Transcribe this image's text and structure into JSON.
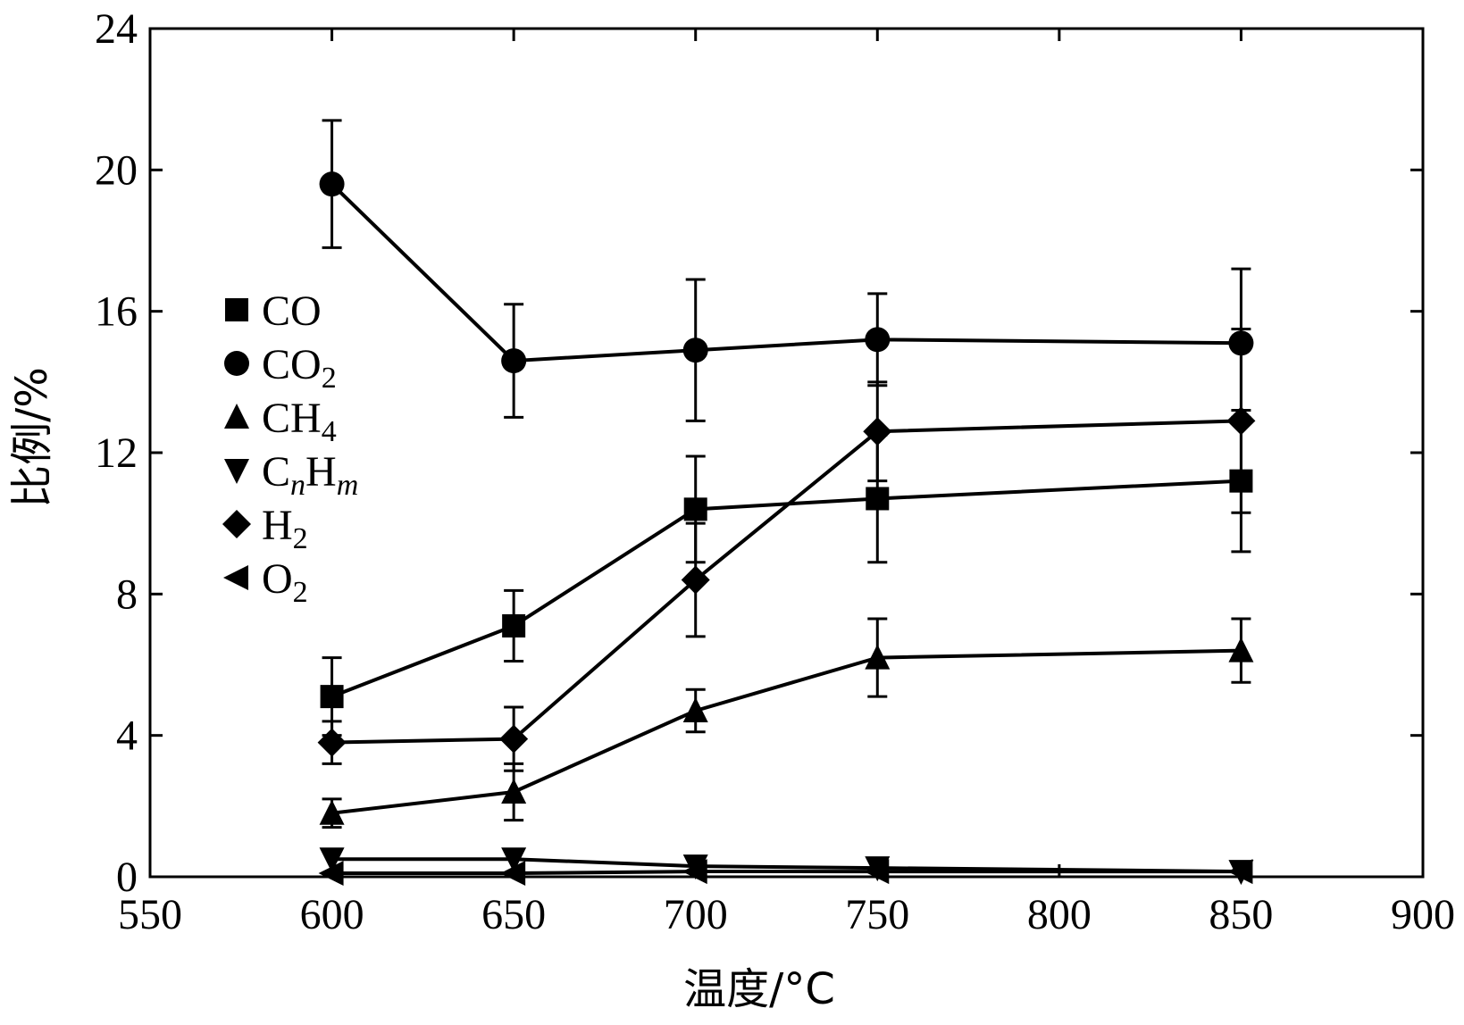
{
  "chart_data": {
    "type": "line",
    "xlabel": "温度/°C",
    "ylabel": "比例/%",
    "xlim": [
      550,
      900
    ],
    "ylim": [
      0,
      24
    ],
    "xticks": [
      550,
      600,
      650,
      700,
      750,
      800,
      850,
      900
    ],
    "yticks": [
      0,
      4,
      8,
      12,
      16,
      20,
      24
    ],
    "x": [
      600,
      650,
      700,
      750,
      850
    ],
    "legend_position": "upper-left",
    "grid": false,
    "series": [
      {
        "name": "CO",
        "label_main": "CO",
        "label_sub": "",
        "label_parts": [],
        "marker": "square",
        "values": [
          5.1,
          7.1,
          10.4,
          10.7,
          11.2
        ],
        "errors": [
          1.1,
          1.0,
          1.5,
          1.8,
          2.0
        ]
      },
      {
        "name": "CO2",
        "label_main": "CO",
        "label_sub": "2",
        "label_parts": [],
        "marker": "circle",
        "values": [
          19.6,
          14.6,
          14.9,
          15.2,
          15.1
        ],
        "errors": [
          1.8,
          1.6,
          2.0,
          1.3,
          2.1
        ]
      },
      {
        "name": "CH4",
        "label_main": "CH",
        "label_sub": "4",
        "label_parts": [],
        "marker": "triangle-up",
        "values": [
          1.8,
          2.4,
          4.7,
          6.2,
          6.4
        ],
        "errors": [
          0.4,
          0.8,
          0.6,
          1.1,
          0.9
        ]
      },
      {
        "name": "CnHm",
        "label_main": "",
        "label_sub": "",
        "marker": "triangle-down",
        "label_parts": [
          {
            "text": "C",
            "style": "normal"
          },
          {
            "text": "n",
            "style": "italic-sub"
          },
          {
            "text": "H",
            "style": "normal"
          },
          {
            "text": "m",
            "style": "italic-sub"
          }
        ],
        "values": [
          0.5,
          0.5,
          0.3,
          0.25,
          0.15
        ],
        "errors": [
          0,
          0,
          0,
          0,
          0
        ]
      },
      {
        "name": "H2",
        "label_main": "H",
        "label_sub": "2",
        "label_parts": [],
        "marker": "diamond",
        "values": [
          3.8,
          3.9,
          8.4,
          12.6,
          12.9
        ],
        "errors": [
          0.6,
          0.9,
          1.6,
          1.4,
          2.6
        ]
      },
      {
        "name": "O2",
        "label_main": "O",
        "label_sub": "2",
        "label_parts": [],
        "marker": "triangle-left",
        "values": [
          0.1,
          0.1,
          0.15,
          0.15,
          0.15
        ],
        "errors": [
          0,
          0,
          0,
          0,
          0
        ]
      }
    ]
  }
}
